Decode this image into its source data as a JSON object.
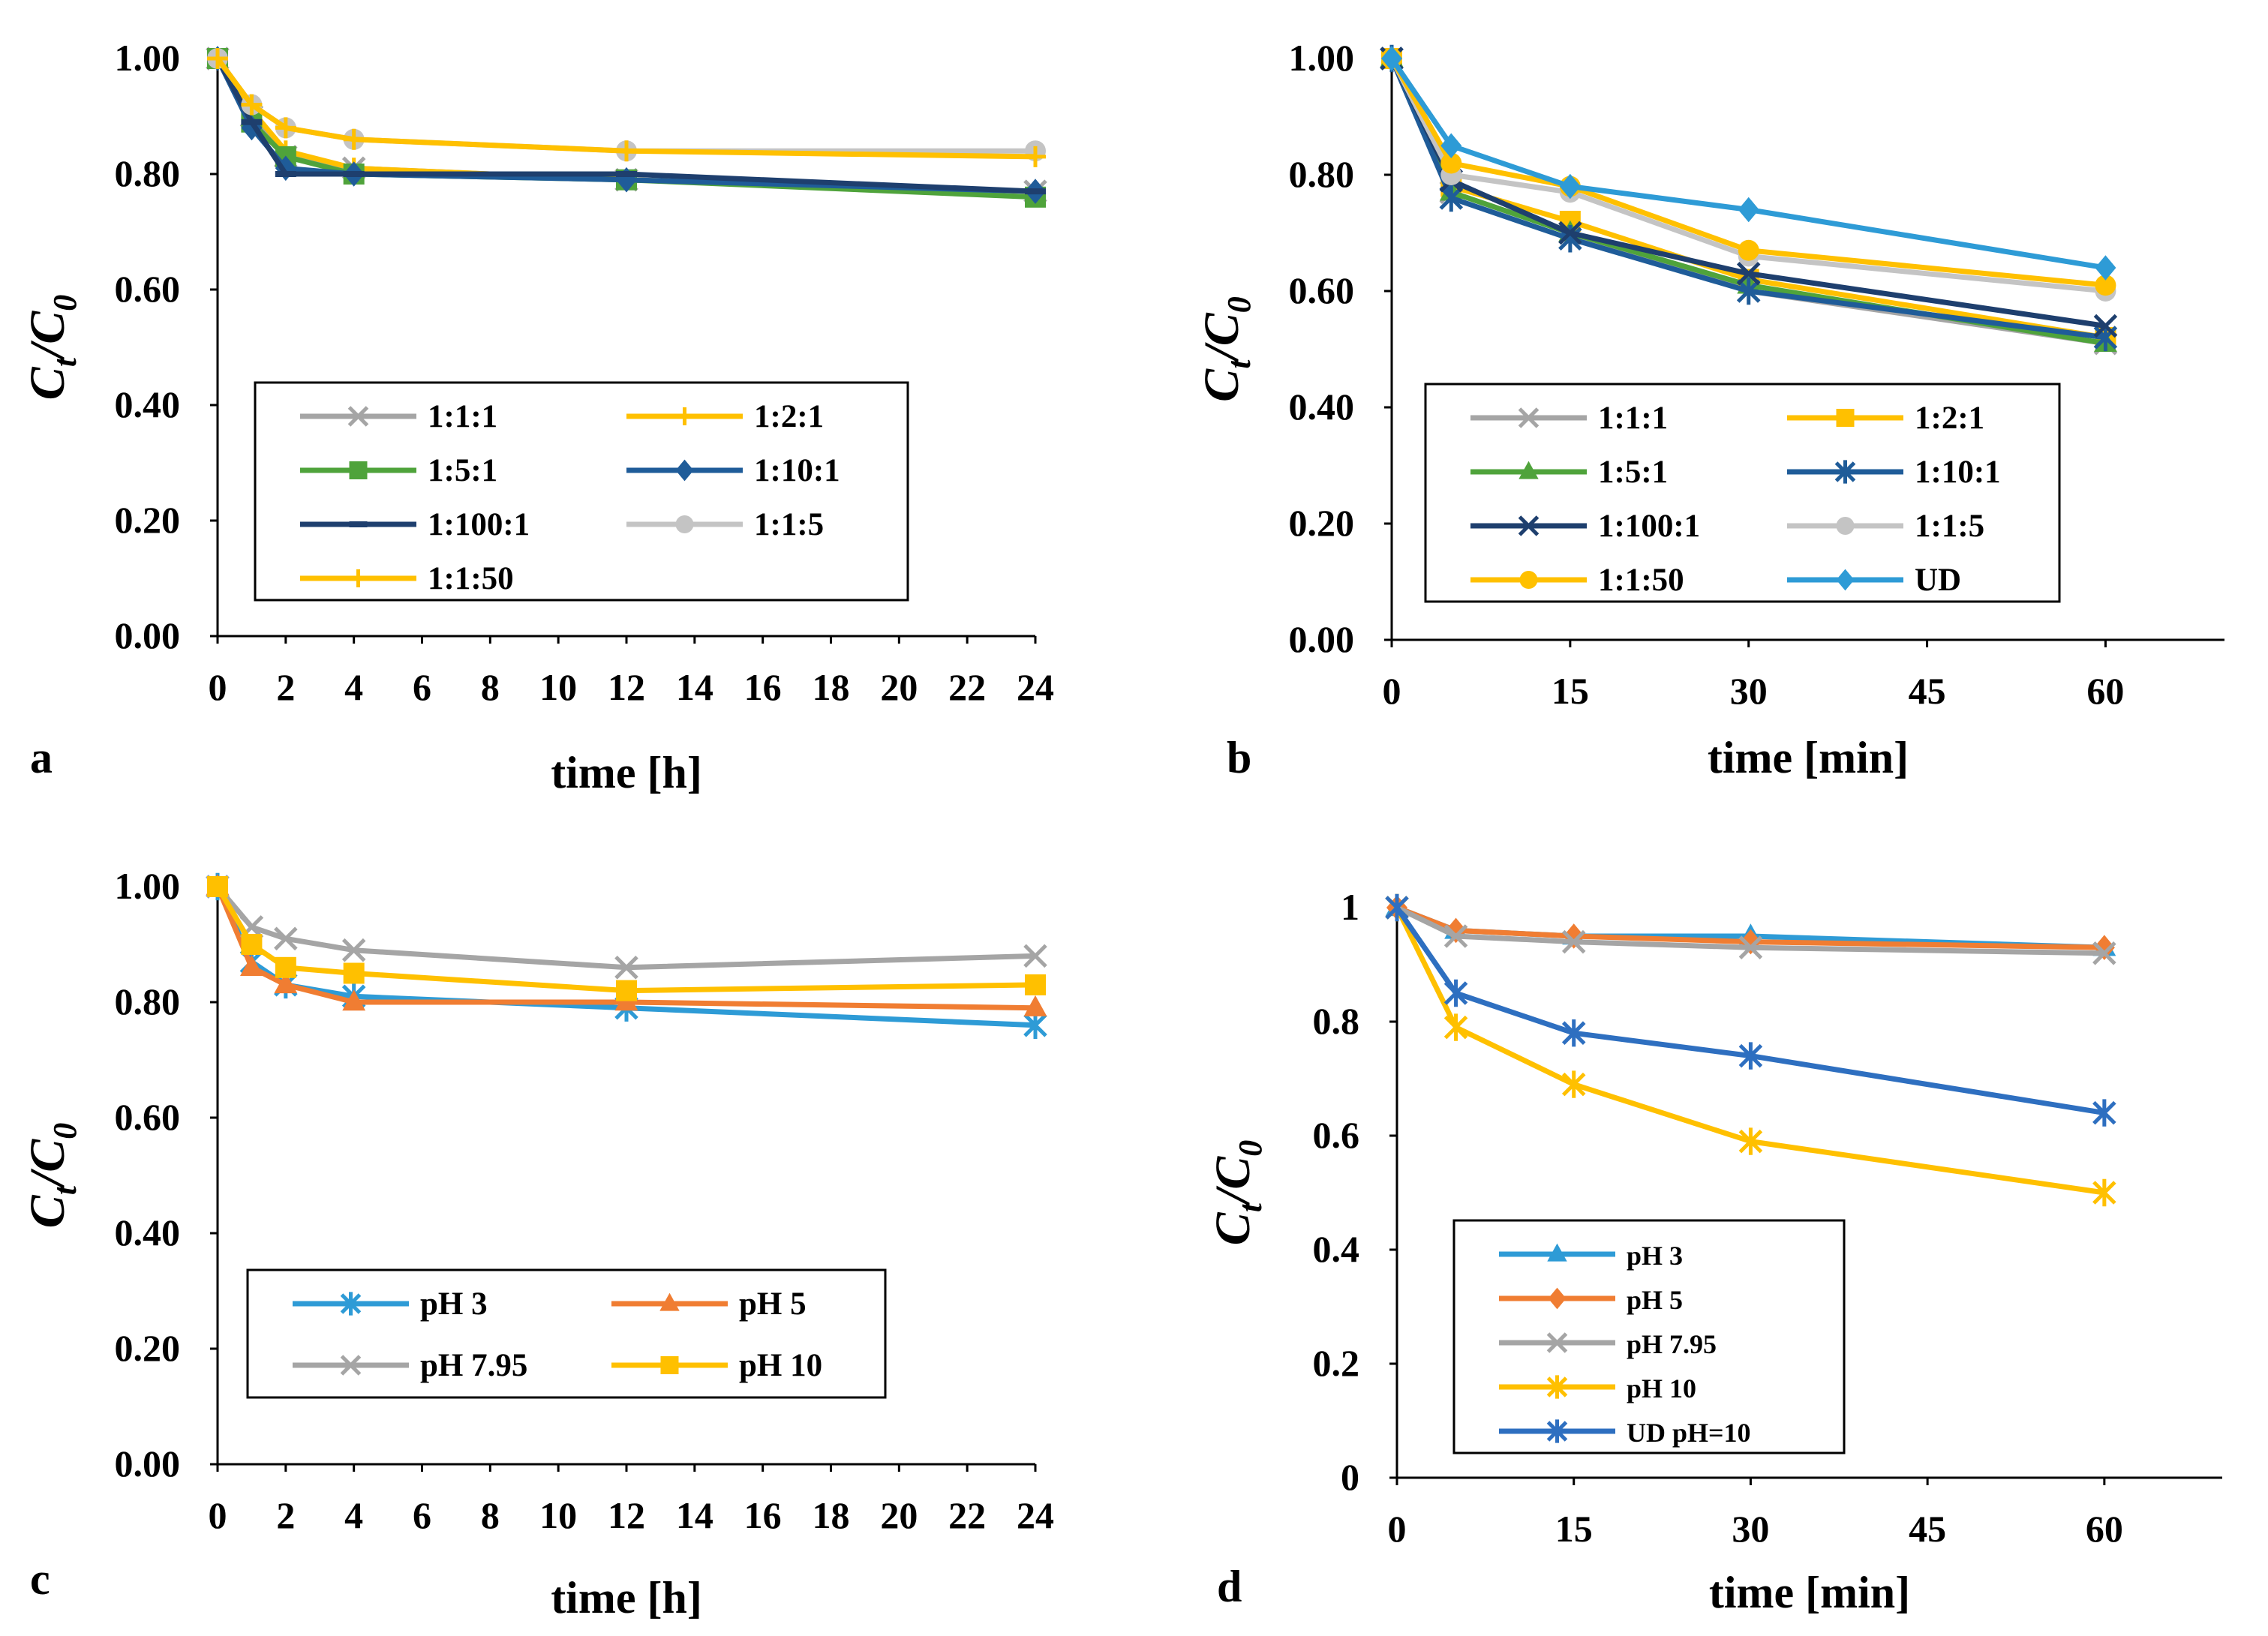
{
  "figure": {
    "colors": {
      "gray": "#A5A5A5",
      "yellow": "#FFC000",
      "green": "#4FA33B",
      "teal": "#1F5C99",
      "navy": "#1E3F6E",
      "lightgray": "#C4C4C4",
      "blue": "#2E9BD6",
      "orange": "#F07D32",
      "midblue": "#2E6FC0"
    }
  },
  "chart_data": [
    {
      "panel_label": "a",
      "type": "line",
      "title": "",
      "xlabel": "time [h]",
      "ylabel_main": "C",
      "ylabel_sub1": "t",
      "ylabel_sub2": "0",
      "xlim": [
        0,
        24
      ],
      "ylim": [
        0,
        1
      ],
      "x_ticks": [
        0,
        2,
        4,
        6,
        8,
        10,
        12,
        14,
        16,
        18,
        20,
        22,
        24
      ],
      "x_tick_labels": [
        "0",
        "2",
        "4",
        "6",
        "8",
        "10",
        "12",
        "14",
        "16",
        "18",
        "20",
        "22",
        "24"
      ],
      "y_ticks": [
        0,
        0.2,
        0.4,
        0.6,
        0.8,
        1.0
      ],
      "y_tick_labels": [
        "0.00",
        "0.20",
        "0.40",
        "0.60",
        "0.80",
        "1.00"
      ],
      "legend_placement": "center",
      "legend_columns": 2,
      "x": [
        0,
        1,
        2,
        4,
        12,
        24
      ],
      "series": [
        {
          "name": "1:1:1",
          "color": "#A5A5A5",
          "marker": "x",
          "values": [
            1.0,
            0.9,
            0.83,
            0.81,
            0.79,
            0.77
          ]
        },
        {
          "name": "1:2:1",
          "color": "#FFC000",
          "marker": "plus",
          "values": [
            1.0,
            0.91,
            0.84,
            0.81,
            0.79,
            0.77
          ]
        },
        {
          "name": "1:5:1",
          "color": "#4FA33B",
          "marker": "square",
          "values": [
            1.0,
            0.89,
            0.83,
            0.8,
            0.79,
            0.76
          ]
        },
        {
          "name": "1:10:1",
          "color": "#1F5C99",
          "marker": "diamond",
          "values": [
            1.0,
            0.88,
            0.81,
            0.8,
            0.79,
            0.77
          ]
        },
        {
          "name": "1:100:1",
          "color": "#1E3F6E",
          "marker": "dash",
          "values": [
            1.0,
            0.89,
            0.8,
            0.8,
            0.8,
            0.77
          ]
        },
        {
          "name": "1:1:5",
          "color": "#C4C4C4",
          "marker": "circle",
          "values": [
            1.0,
            0.92,
            0.88,
            0.86,
            0.84,
            0.84
          ]
        },
        {
          "name": "1:1:50",
          "color": "#FFC000",
          "marker": "plus",
          "values": [
            1.0,
            0.92,
            0.88,
            0.86,
            0.84,
            0.83
          ]
        }
      ]
    },
    {
      "panel_label": "b",
      "type": "line",
      "title": "",
      "xlabel": "time [min]",
      "ylabel_main": "C",
      "ylabel_sub1": "t",
      "ylabel_sub2": "0",
      "xlim": [
        0,
        70
      ],
      "ylim": [
        0,
        1
      ],
      "x_ticks": [
        0,
        15,
        30,
        45,
        60
      ],
      "x_tick_labels": [
        "0",
        "15",
        "30",
        "45",
        "60"
      ],
      "y_ticks": [
        0,
        0.2,
        0.4,
        0.6,
        0.8,
        1.0
      ],
      "y_tick_labels": [
        "0.00",
        "0.20",
        "0.40",
        "0.60",
        "0.80",
        "1.00"
      ],
      "legend_placement": "center",
      "legend_columns": 2,
      "x": [
        0,
        5,
        15,
        30,
        60
      ],
      "series": [
        {
          "name": "1:1:1",
          "color": "#A5A5A5",
          "marker": "x",
          "values": [
            1.0,
            0.77,
            0.7,
            0.6,
            0.51
          ]
        },
        {
          "name": "1:2:1",
          "color": "#FFC000",
          "marker": "square",
          "values": [
            1.0,
            0.78,
            0.72,
            0.62,
            0.52
          ]
        },
        {
          "name": "1:5:1",
          "color": "#4FA33B",
          "marker": "triangle",
          "values": [
            1.0,
            0.77,
            0.7,
            0.61,
            0.51
          ]
        },
        {
          "name": "1:10:1",
          "color": "#1F5C99",
          "marker": "star",
          "values": [
            1.0,
            0.76,
            0.69,
            0.6,
            0.52
          ]
        },
        {
          "name": "1:100:1",
          "color": "#1E3F6E",
          "marker": "x",
          "values": [
            1.0,
            0.79,
            0.7,
            0.63,
            0.54
          ]
        },
        {
          "name": "1:1:5",
          "color": "#C4C4C4",
          "marker": "circle",
          "values": [
            1.0,
            0.8,
            0.77,
            0.66,
            0.6
          ]
        },
        {
          "name": "1:1:50",
          "color": "#FFC000",
          "marker": "circle",
          "values": [
            1.0,
            0.82,
            0.78,
            0.67,
            0.61
          ]
        },
        {
          "name": "UD",
          "color": "#2E9BD6",
          "marker": "diamond",
          "values": [
            1.0,
            0.85,
            0.78,
            0.74,
            0.64
          ]
        }
      ]
    },
    {
      "panel_label": "c",
      "type": "line",
      "title": "",
      "xlabel": "time [h]",
      "ylabel_main": "C",
      "ylabel_sub1": "t",
      "ylabel_sub2": "0",
      "xlim": [
        0,
        24
      ],
      "ylim": [
        0,
        1
      ],
      "x_ticks": [
        0,
        2,
        4,
        6,
        8,
        10,
        12,
        14,
        16,
        18,
        20,
        22,
        24
      ],
      "x_tick_labels": [
        "0",
        "2",
        "4",
        "6",
        "8",
        "10",
        "12",
        "14",
        "16",
        "18",
        "20",
        "22",
        "24"
      ],
      "y_ticks": [
        0,
        0.2,
        0.4,
        0.6,
        0.8,
        1.0
      ],
      "y_tick_labels": [
        "0.00",
        "0.20",
        "0.40",
        "0.60",
        "0.80",
        "1.00"
      ],
      "legend_placement": "lower-center",
      "legend_columns": 2,
      "x": [
        0,
        1,
        2,
        4,
        12,
        24
      ],
      "series": [
        {
          "name": "pH 3",
          "color": "#2E9BD6",
          "marker": "star",
          "values": [
            1.0,
            0.87,
            0.83,
            0.81,
            0.79,
            0.76
          ]
        },
        {
          "name": "pH 5",
          "color": "#F07D32",
          "marker": "triangle",
          "values": [
            1.0,
            0.86,
            0.83,
            0.8,
            0.8,
            0.79
          ]
        },
        {
          "name": "pH 7.95",
          "color": "#A5A5A5",
          "marker": "x",
          "values": [
            1.0,
            0.93,
            0.91,
            0.89,
            0.86,
            0.88
          ]
        },
        {
          "name": "pH 10",
          "color": "#FFC000",
          "marker": "square",
          "values": [
            1.0,
            0.9,
            0.86,
            0.85,
            0.82,
            0.83
          ]
        }
      ]
    },
    {
      "panel_label": "d",
      "type": "line",
      "title": "",
      "xlabel": "time [min]",
      "ylabel_main": "C",
      "ylabel_sub1": "t",
      "ylabel_sub2": "0",
      "xlim": [
        0,
        70
      ],
      "ylim": [
        0,
        1
      ],
      "x_ticks": [
        0,
        15,
        30,
        45,
        60
      ],
      "x_tick_labels": [
        "0",
        "15",
        "30",
        "45",
        "60"
      ],
      "y_ticks": [
        0,
        0.2,
        0.4,
        0.6,
        0.8,
        1.0
      ],
      "y_tick_labels": [
        "0",
        "0.2",
        "0.4",
        "0.6",
        "0.8",
        "1"
      ],
      "legend_placement": "lower-left",
      "legend_columns": 1,
      "x": [
        0,
        5,
        15,
        30,
        60
      ],
      "series": [
        {
          "name": "pH 3",
          "color": "#2E9BD6",
          "marker": "triangle",
          "values": [
            1.0,
            0.96,
            0.95,
            0.95,
            0.93
          ]
        },
        {
          "name": "pH 5",
          "color": "#F07D32",
          "marker": "diamond",
          "values": [
            1.0,
            0.96,
            0.95,
            0.94,
            0.93
          ]
        },
        {
          "name": "pH 7.95",
          "color": "#A5A5A5",
          "marker": "x",
          "values": [
            1.0,
            0.95,
            0.94,
            0.93,
            0.92
          ]
        },
        {
          "name": "pH 10",
          "color": "#FFC000",
          "marker": "star",
          "values": [
            1.0,
            0.79,
            0.69,
            0.59,
            0.5
          ]
        },
        {
          "name": "UD pH=10",
          "color": "#2E6FC0",
          "marker": "star",
          "values": [
            1.0,
            0.85,
            0.78,
            0.74,
            0.64
          ]
        }
      ]
    }
  ]
}
